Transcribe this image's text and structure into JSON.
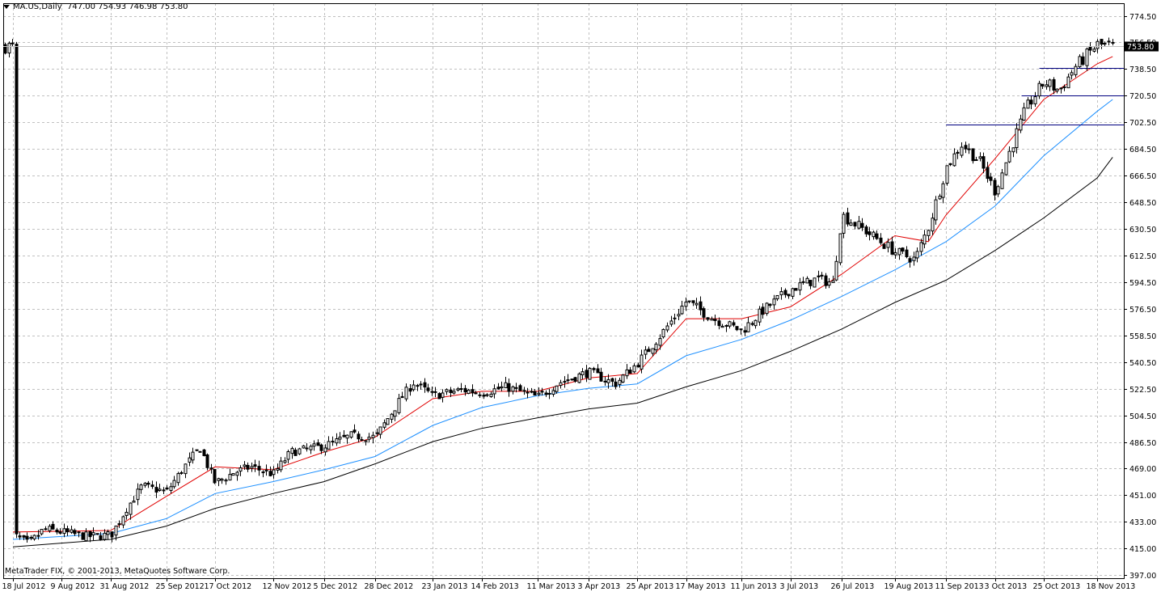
{
  "header": {
    "symbol": "MA.US,Daily",
    "ohlc": "747.00 754.93 746.98 753.80"
  },
  "copyright": "MetaTrader FIX, © 2001-2013, MetaQuotes Software Corp.",
  "current_price_label": "753.80",
  "colors": {
    "background": "#ffffff",
    "grid": "#c0c0c0",
    "candle_bull": "#ffffff",
    "candle_bear": "#000000",
    "ma_fast": "#e00000",
    "ma_mid": "#1e90ff",
    "ma_slow": "#000000",
    "levels": "#000080"
  },
  "chart_data": {
    "type": "candlestick",
    "title": "MA.US,Daily",
    "y_ticks": [
      "774.50",
      "756.50",
      "738.50",
      "720.50",
      "702.50",
      "684.50",
      "666.50",
      "648.50",
      "630.50",
      "612.50",
      "594.50",
      "576.50",
      "558.50",
      "540.50",
      "522.50",
      "504.50",
      "486.50",
      "469.00",
      "451.00",
      "433.00",
      "415.00",
      "397.00"
    ],
    "ylim": [
      397.0,
      774.5
    ],
    "x_ticks": [
      "18 Jul 2012",
      "9 Aug 2012",
      "31 Aug 2012",
      "25 Sep 2012",
      "17 Oct 2012",
      "12 Nov 2012",
      "5 Dec 2012",
      "28 Dec 2012",
      "23 Jan 2013",
      "14 Feb 2013",
      "11 Mar 2013",
      "3 Apr 2013",
      "25 Apr 2013",
      "17 May 2013",
      "11 Jun 2013",
      "3 Jul 2013",
      "26 Jul 2013",
      "19 Aug 2013",
      "11 Sep 2013",
      "3 Oct 2013",
      "25 Oct 2013",
      "18 Nov 2013"
    ],
    "close_path": [
      {
        "d": "18 Jul 2012",
        "v": 424
      },
      {
        "d": "25 Jul 2012",
        "v": 418
      },
      {
        "d": "1 Aug 2012",
        "v": 428
      },
      {
        "d": "9 Aug 2012",
        "v": 426
      },
      {
        "d": "20 Aug 2012",
        "v": 423
      },
      {
        "d": "31 Aug 2012",
        "v": 424
      },
      {
        "d": "7 Sep 2012",
        "v": 442
      },
      {
        "d": "14 Sep 2012",
        "v": 457
      },
      {
        "d": "25 Sep 2012",
        "v": 453
      },
      {
        "d": "4 Oct 2012",
        "v": 472
      },
      {
        "d": "10 Oct 2012",
        "v": 483
      },
      {
        "d": "17 Oct 2012",
        "v": 459
      },
      {
        "d": "25 Oct 2012",
        "v": 466
      },
      {
        "d": "2 Nov 2012",
        "v": 470
      },
      {
        "d": "12 Nov 2012",
        "v": 465
      },
      {
        "d": "20 Nov 2012",
        "v": 480
      },
      {
        "d": "5 Dec 2012",
        "v": 484
      },
      {
        "d": "17 Dec 2012",
        "v": 491
      },
      {
        "d": "28 Dec 2012",
        "v": 490
      },
      {
        "d": "8 Jan 2013",
        "v": 515
      },
      {
        "d": "14 Jan 2013",
        "v": 527
      },
      {
        "d": "23 Jan 2013",
        "v": 518
      },
      {
        "d": "5 Feb 2013",
        "v": 522
      },
      {
        "d": "14 Feb 2013",
        "v": 520
      },
      {
        "d": "25 Feb 2013",
        "v": 524
      },
      {
        "d": "11 Mar 2013",
        "v": 517
      },
      {
        "d": "21 Mar 2013",
        "v": 527
      },
      {
        "d": "3 Apr 2013",
        "v": 534
      },
      {
        "d": "15 Apr 2013",
        "v": 526
      },
      {
        "d": "25 Apr 2013",
        "v": 540
      },
      {
        "d": "6 May 2013",
        "v": 560
      },
      {
        "d": "17 May 2013",
        "v": 582
      },
      {
        "d": "29 May 2013",
        "v": 570
      },
      {
        "d": "11 Jun 2013",
        "v": 562
      },
      {
        "d": "20 Jun 2013",
        "v": 575
      },
      {
        "d": "3 Jul 2013",
        "v": 590
      },
      {
        "d": "15 Jul 2013",
        "v": 597
      },
      {
        "d": "22 Jul 2013",
        "v": 594
      },
      {
        "d": "26 Jul 2013",
        "v": 640
      },
      {
        "d": "5 Aug 2013",
        "v": 630
      },
      {
        "d": "19 Aug 2013",
        "v": 615
      },
      {
        "d": "28 Aug 2013",
        "v": 610
      },
      {
        "d": "3 Sep 2013",
        "v": 632
      },
      {
        "d": "11 Sep 2013",
        "v": 672
      },
      {
        "d": "18 Sep 2013",
        "v": 688
      },
      {
        "d": "26 Sep 2013",
        "v": 676
      },
      {
        "d": "3 Oct 2013",
        "v": 656
      },
      {
        "d": "10 Oct 2013",
        "v": 685
      },
      {
        "d": "17 Oct 2013",
        "v": 712
      },
      {
        "d": "25 Oct 2013",
        "v": 730
      },
      {
        "d": "1 Nov 2013",
        "v": 724
      },
      {
        "d": "8 Nov 2013",
        "v": 740
      },
      {
        "d": "18 Nov 2013",
        "v": 755
      },
      {
        "d": "25 Nov 2013",
        "v": 753.8
      }
    ],
    "moving_averages": [
      {
        "name": "",
        "color_key": "ma_fast",
        "points": [
          {
            "d": "18 Jul 2012",
            "v": 426
          },
          {
            "d": "31 Aug 2012",
            "v": 427
          },
          {
            "d": "25 Sep 2012",
            "v": 450
          },
          {
            "d": "17 Oct 2012",
            "v": 470
          },
          {
            "d": "12 Nov 2012",
            "v": 468
          },
          {
            "d": "5 Dec 2012",
            "v": 480
          },
          {
            "d": "28 Dec 2012",
            "v": 490
          },
          {
            "d": "23 Jan 2013",
            "v": 516
          },
          {
            "d": "14 Feb 2013",
            "v": 521
          },
          {
            "d": "11 Mar 2013",
            "v": 521
          },
          {
            "d": "3 Apr 2013",
            "v": 530
          },
          {
            "d": "25 Apr 2013",
            "v": 533
          },
          {
            "d": "17 May 2013",
            "v": 570
          },
          {
            "d": "11 Jun 2013",
            "v": 570
          },
          {
            "d": "3 Jul 2013",
            "v": 578
          },
          {
            "d": "26 Jul 2013",
            "v": 600
          },
          {
            "d": "19 Aug 2013",
            "v": 626
          },
          {
            "d": "3 Sep 2013",
            "v": 622
          },
          {
            "d": "11 Sep 2013",
            "v": 640
          },
          {
            "d": "3 Oct 2013",
            "v": 678
          },
          {
            "d": "25 Oct 2013",
            "v": 718
          },
          {
            "d": "18 Nov 2013",
            "v": 742
          },
          {
            "d": "25 Nov 2013",
            "v": 747
          }
        ]
      },
      {
        "name": "",
        "color_key": "ma_mid",
        "points": [
          {
            "d": "18 Jul 2012",
            "v": 421
          },
          {
            "d": "31 Aug 2012",
            "v": 425
          },
          {
            "d": "25 Sep 2012",
            "v": 435
          },
          {
            "d": "17 Oct 2012",
            "v": 452
          },
          {
            "d": "12 Nov 2012",
            "v": 460
          },
          {
            "d": "5 Dec 2012",
            "v": 468
          },
          {
            "d": "28 Dec 2012",
            "v": 477
          },
          {
            "d": "23 Jan 2013",
            "v": 498
          },
          {
            "d": "14 Feb 2013",
            "v": 510
          },
          {
            "d": "11 Mar 2013",
            "v": 518
          },
          {
            "d": "3 Apr 2013",
            "v": 523
          },
          {
            "d": "25 Apr 2013",
            "v": 526
          },
          {
            "d": "17 May 2013",
            "v": 545
          },
          {
            "d": "11 Jun 2013",
            "v": 556
          },
          {
            "d": "3 Jul 2013",
            "v": 569
          },
          {
            "d": "26 Jul 2013",
            "v": 585
          },
          {
            "d": "19 Aug 2013",
            "v": 603
          },
          {
            "d": "11 Sep 2013",
            "v": 622
          },
          {
            "d": "3 Oct 2013",
            "v": 646
          },
          {
            "d": "25 Oct 2013",
            "v": 680
          },
          {
            "d": "18 Nov 2013",
            "v": 710
          },
          {
            "d": "25 Nov 2013",
            "v": 718
          }
        ]
      },
      {
        "name": "",
        "color_key": "ma_slow",
        "points": [
          {
            "d": "18 Jul 2012",
            "v": 416
          },
          {
            "d": "31 Aug 2012",
            "v": 421
          },
          {
            "d": "25 Sep 2012",
            "v": 430
          },
          {
            "d": "17 Oct 2012",
            "v": 442
          },
          {
            "d": "12 Nov 2012",
            "v": 452
          },
          {
            "d": "5 Dec 2012",
            "v": 460
          },
          {
            "d": "28 Dec 2012",
            "v": 472
          },
          {
            "d": "23 Jan 2013",
            "v": 487
          },
          {
            "d": "14 Feb 2013",
            "v": 496
          },
          {
            "d": "11 Mar 2013",
            "v": 503
          },
          {
            "d": "3 Apr 2013",
            "v": 509
          },
          {
            "d": "25 Apr 2013",
            "v": 513
          },
          {
            "d": "17 May 2013",
            "v": 524
          },
          {
            "d": "11 Jun 2013",
            "v": 535
          },
          {
            "d": "3 Jul 2013",
            "v": 548
          },
          {
            "d": "26 Jul 2013",
            "v": 563
          },
          {
            "d": "19 Aug 2013",
            "v": 581
          },
          {
            "d": "11 Sep 2013",
            "v": 596
          },
          {
            "d": "3 Oct 2013",
            "v": 616
          },
          {
            "d": "25 Oct 2013",
            "v": 638
          },
          {
            "d": "18 Nov 2013",
            "v": 665
          },
          {
            "d": "25 Nov 2013",
            "v": 679
          }
        ]
      }
    ],
    "horizontal_levels": [
      {
        "value": 739.5,
        "from": "23 Oct 2013"
      },
      {
        "value": 720.5,
        "from": "15 Oct 2013"
      },
      {
        "value": 701.0,
        "from": "11 Sep 2013"
      }
    ],
    "current_price": 753.8,
    "grid": true
  }
}
